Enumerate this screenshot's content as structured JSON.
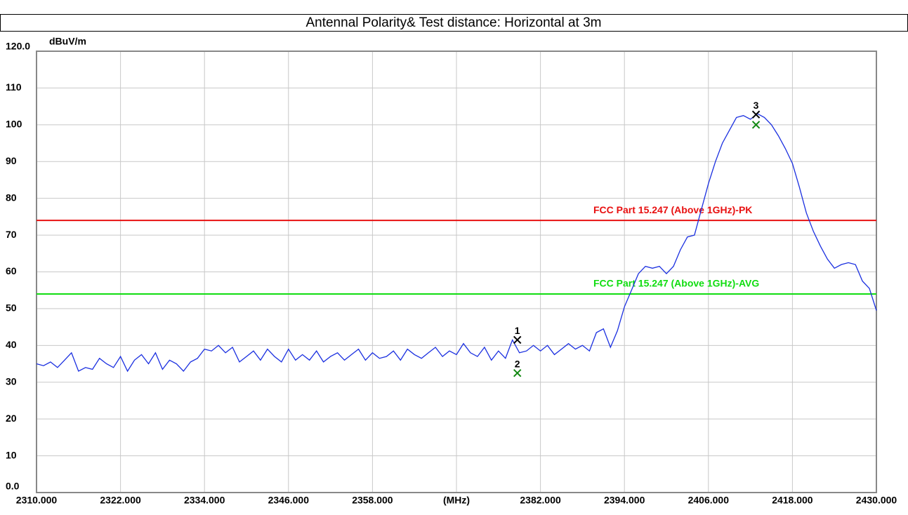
{
  "chart_data": {
    "type": "line",
    "title": "Antennal Polarity& Test distance: Horizontal at 3m",
    "y_label": "dBuV/m",
    "xlim": [
      2310,
      2430
    ],
    "ylim": [
      0,
      120
    ],
    "xticks": [
      {
        "value": 2310,
        "label": "2310.000"
      },
      {
        "value": 2322,
        "label": "2322.000"
      },
      {
        "value": 2334,
        "label": "2334.000"
      },
      {
        "value": 2346,
        "label": "2346.000"
      },
      {
        "value": 2358,
        "label": "2358.000"
      },
      {
        "value": 2370,
        "label": "(MHz)"
      },
      {
        "value": 2382,
        "label": "2382.000"
      },
      {
        "value": 2394,
        "label": "2394.000"
      },
      {
        "value": 2406,
        "label": "2406.000"
      },
      {
        "value": 2418,
        "label": "2418.000"
      },
      {
        "value": 2430,
        "label": "2430.000"
      }
    ],
    "yticks": [
      {
        "value": 0,
        "label": "0.0"
      },
      10,
      20,
      30,
      40,
      50,
      60,
      70,
      80,
      90,
      100,
      110,
      {
        "value": 120,
        "label": "120.0"
      }
    ],
    "grid": true,
    "limits": [
      {
        "name": "FCC Part 15.247 (Above 1GHz)-PK",
        "value": 74,
        "color": "#e81010"
      },
      {
        "name": "FCC Part 15.247 (Above 1GHz)-AVG",
        "value": 54,
        "color": "#10dd10"
      }
    ],
    "markers": [
      {
        "label": "1",
        "x": 2378.7,
        "y": 41.5,
        "color": "#000000"
      },
      {
        "label": "2",
        "x": 2378.7,
        "y": 32.5,
        "color": "#118811"
      },
      {
        "label": "3",
        "x": 2412.8,
        "y": 102.8,
        "color": "#000000"
      },
      {
        "label": "3",
        "x": 2412.8,
        "y": 100,
        "color": "#118811"
      }
    ],
    "x": [
      2310,
      2311,
      2312,
      2313,
      2314,
      2315,
      2316,
      2317,
      2318,
      2319,
      2320,
      2321,
      2322,
      2323,
      2324,
      2325,
      2326,
      2327,
      2328,
      2329,
      2330,
      2331,
      2332,
      2333,
      2334,
      2335,
      2336,
      2337,
      2338,
      2339,
      2340,
      2341,
      2342,
      2343,
      2344,
      2345,
      2346,
      2347,
      2348,
      2349,
      2350,
      2351,
      2352,
      2353,
      2354,
      2355,
      2356,
      2357,
      2358,
      2359,
      2360,
      2361,
      2362,
      2363,
      2364,
      2365,
      2366,
      2367,
      2368,
      2369,
      2370,
      2371,
      2372,
      2373,
      2374,
      2375,
      2376,
      2377,
      2378,
      2379,
      2380,
      2381,
      2382,
      2383,
      2384,
      2385,
      2386,
      2387,
      2388,
      2389,
      2390,
      2391,
      2392,
      2393,
      2394,
      2395,
      2396,
      2397,
      2398,
      2399,
      2400,
      2401,
      2402,
      2403,
      2404,
      2405,
      2406,
      2407,
      2408,
      2409,
      2410,
      2411,
      2412,
      2413,
      2414,
      2415,
      2416,
      2417,
      2418,
      2419,
      2420,
      2421,
      2422,
      2423,
      2424,
      2425,
      2426,
      2427,
      2428,
      2429,
      2430
    ],
    "series": [
      {
        "color": "#1a2fe0",
        "values": [
          35,
          34.5,
          35.5,
          34,
          36,
          38,
          33,
          34,
          33.5,
          36.5,
          35,
          34,
          37,
          33,
          36,
          37.5,
          35,
          38,
          33.5,
          36,
          35,
          33,
          35.5,
          36.5,
          39,
          38.5,
          40,
          38,
          39.5,
          35.5,
          37,
          38.5,
          36,
          39,
          37,
          35.5,
          39,
          36,
          37.5,
          36,
          38.5,
          35.5,
          37,
          38,
          36,
          37.5,
          39,
          36,
          38,
          36.5,
          37,
          38.5,
          36,
          39,
          37.5,
          36.5,
          38,
          39.5,
          37,
          38.5,
          37.5,
          40.5,
          38,
          37,
          39.5,
          36,
          38.5,
          36.5,
          41.5,
          38,
          38.5,
          40,
          38.5,
          40,
          37.5,
          39,
          40.5,
          39,
          40,
          38.5,
          43.5,
          44.5,
          39.5,
          44,
          50.5,
          55,
          59.5,
          61.5,
          61,
          61.5,
          59.5,
          61.5,
          66,
          69.5,
          70,
          77,
          84,
          90,
          95,
          98.5,
          102,
          102.5,
          101.5,
          103,
          102,
          100,
          97,
          93.5,
          89.5,
          83,
          76,
          71,
          67,
          63.5,
          61,
          62,
          62.5,
          62,
          57.5,
          55.5,
          49.5
        ]
      }
    ]
  }
}
